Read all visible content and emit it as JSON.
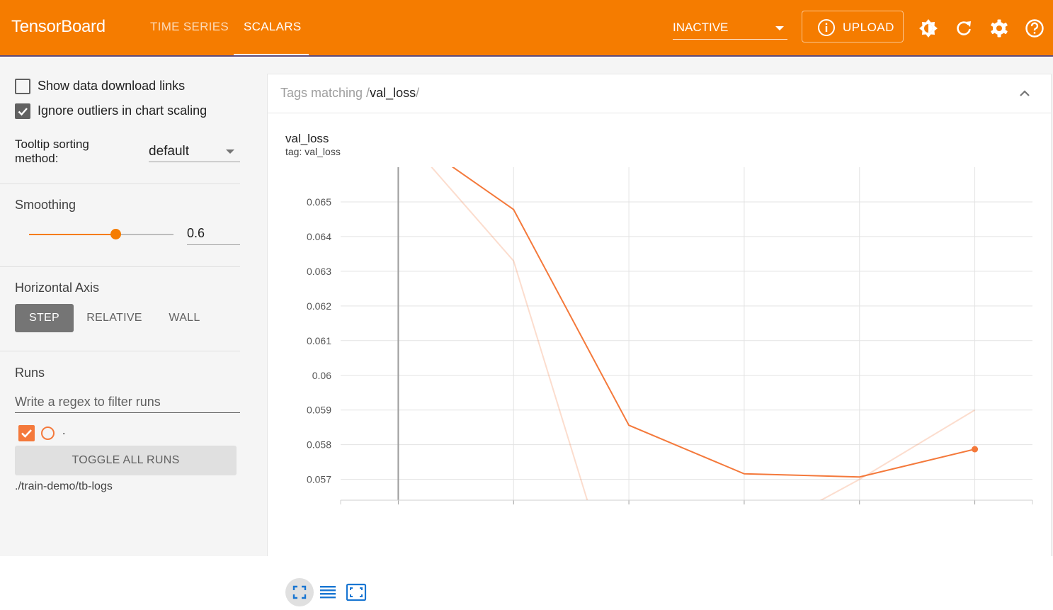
{
  "app": {
    "title": "TensorBoard"
  },
  "nav": {
    "tabs": [
      {
        "label": "TIME SERIES"
      },
      {
        "label": "SCALARS"
      }
    ]
  },
  "run_selector": {
    "value": "INACTIVE"
  },
  "upload": {
    "label": "UPLOAD"
  },
  "colors": {
    "accent": "#f57c00",
    "run": "#f4793b"
  },
  "sidebar": {
    "show_download_links": {
      "label": "Show data download links",
      "checked": false
    },
    "ignore_outliers": {
      "label": "Ignore outliers in chart scaling",
      "checked": true
    },
    "tooltip_sorting": {
      "label": "Tooltip sorting method:",
      "value": "default"
    },
    "smoothing": {
      "title": "Smoothing",
      "value": "0.6",
      "fraction": 0.6
    },
    "horizontal_axis": {
      "title": "Horizontal Axis",
      "options": [
        "STEP",
        "RELATIVE",
        "WALL"
      ],
      "selected": "STEP"
    },
    "runs": {
      "title": "Runs",
      "filter_placeholder": "Write a regex to filter runs",
      "items": [
        {
          "label": ".",
          "checked": true
        }
      ],
      "toggle_all_label": "TOGGLE ALL RUNS",
      "log_dir": "./train-demo/tb-logs"
    }
  },
  "main": {
    "tag_filter": {
      "prefix": "Tags matching /",
      "pattern": "val_loss",
      "suffix": "/"
    },
    "card": {
      "title": "val_loss",
      "subtitle": "tag: val_loss"
    }
  },
  "chart_data": {
    "type": "line",
    "title": "val_loss",
    "xlabel": "",
    "ylabel": "",
    "x_ticks": [
      0,
      1,
      2,
      3,
      4,
      5
    ],
    "y_ticks": [
      "0.057",
      "0.058",
      "0.059",
      "0.06",
      "0.061",
      "0.062",
      "0.063",
      "0.064",
      "0.065"
    ],
    "xlim": [
      -0.5,
      5.5
    ],
    "ylim": [
      0.0564,
      0.066
    ],
    "grid": true,
    "series": [
      {
        "role": "smoothed",
        "x": [
          0,
          1,
          2,
          3,
          4,
          5
        ],
        "y": [
          0.0671,
          0.06478,
          0.05856,
          0.05716,
          0.05707,
          0.05787
        ]
      },
      {
        "role": "raw",
        "x": [
          0,
          1,
          2,
          3,
          4,
          5
        ],
        "y": [
          0.0671,
          0.0633,
          0.0525,
          0.0552,
          0.057,
          0.059
        ]
      }
    ]
  }
}
